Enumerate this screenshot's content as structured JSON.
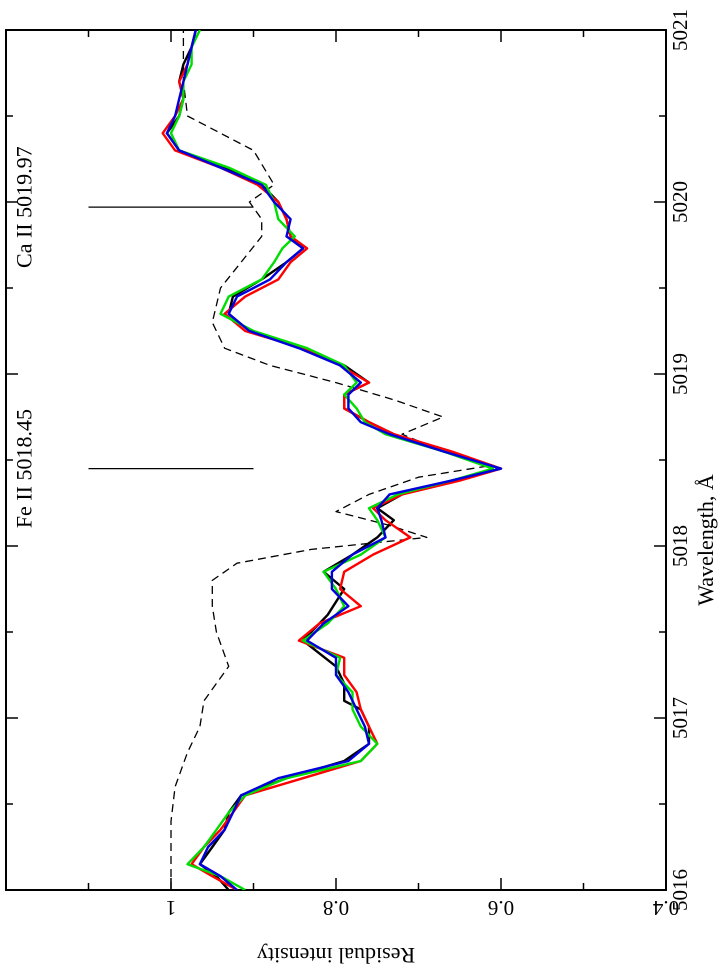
{
  "chart_data": {
    "type": "line",
    "orientation": "rotated-90-clockwise",
    "xlabel": "Wavelength, Å",
    "ylabel": "Residual intensity",
    "xlim": [
      5016,
      5021
    ],
    "ylim": [
      0.4,
      1.2
    ],
    "xticks": [
      5016,
      5017,
      5018,
      5019,
      5020,
      5021
    ],
    "xtick_labels": [
      "5016",
      "5017",
      "5018",
      "5019",
      "5020",
      "5021"
    ],
    "yticks": [
      0.4,
      0.6,
      0.8,
      1
    ],
    "ytick_labels": [
      "0.4",
      "0.6",
      "0.8",
      "1"
    ],
    "grid": false,
    "annotations": [
      {
        "label": "Fe II 5018.45",
        "x": 5018.45,
        "y_from": 0.9,
        "y_to": 1.1
      },
      {
        "label": "Ca II 5019.97",
        "x": 5019.97,
        "y_from": 0.9,
        "y_to": 1.1
      }
    ],
    "series": [
      {
        "color": "#000000",
        "dash": "dashed",
        "x": [
          5016.0,
          5016.4,
          5016.6,
          5016.8,
          5016.95,
          5017.1,
          5017.3,
          5017.5,
          5017.65,
          5017.8,
          5017.9,
          5017.98,
          5018.05,
          5018.12,
          5018.2,
          5018.3,
          5018.4,
          5018.47,
          5018.55,
          5018.65,
          5018.75,
          5018.85,
          5018.95,
          5019.05,
          5019.15,
          5019.3,
          5019.5,
          5019.65,
          5019.8,
          5019.9,
          5020.0,
          5020.1,
          5020.3,
          5020.5,
          5020.7,
          5021.0
        ],
        "y": [
          1.0,
          1.0,
          0.995,
          0.98,
          0.965,
          0.96,
          0.93,
          0.945,
          0.95,
          0.95,
          0.92,
          0.83,
          0.69,
          0.735,
          0.8,
          0.76,
          0.7,
          0.61,
          0.67,
          0.72,
          0.67,
          0.73,
          0.8,
          0.88,
          0.935,
          0.95,
          0.94,
          0.915,
          0.89,
          0.89,
          0.905,
          0.875,
          0.9,
          0.98,
          0.985,
          0.985
        ]
      },
      {
        "color": "#000000",
        "dash": "solid",
        "x": [
          5016.0,
          5016.08,
          5016.15,
          5016.25,
          5016.35,
          5016.45,
          5016.55,
          5016.65,
          5016.75,
          5016.85,
          5016.95,
          5017.05,
          5017.1,
          5017.2,
          5017.3,
          5017.45,
          5017.6,
          5017.75,
          5017.85,
          5017.95,
          5018.05,
          5018.15,
          5018.22,
          5018.3,
          5018.38,
          5018.45,
          5018.55,
          5018.65,
          5018.72,
          5018.8,
          5018.88,
          5018.95,
          5019.05,
          5019.15,
          5019.25,
          5019.35,
          5019.45,
          5019.55,
          5019.65,
          5019.73,
          5019.8,
          5019.9,
          5020.0,
          5020.1,
          5020.2,
          5020.3,
          5020.4,
          5020.5,
          5020.6,
          5020.7,
          5020.8,
          5020.9,
          5021.0
        ],
        "y": [
          0.93,
          0.945,
          0.965,
          0.95,
          0.935,
          0.93,
          0.915,
          0.86,
          0.79,
          0.76,
          0.76,
          0.77,
          0.79,
          0.79,
          0.8,
          0.84,
          0.81,
          0.79,
          0.815,
          0.78,
          0.75,
          0.73,
          0.75,
          0.72,
          0.66,
          0.6,
          0.67,
          0.73,
          0.76,
          0.79,
          0.79,
          0.76,
          0.79,
          0.84,
          0.905,
          0.93,
          0.925,
          0.89,
          0.86,
          0.84,
          0.855,
          0.86,
          0.87,
          0.89,
          0.935,
          0.99,
          1.005,
          0.99,
          0.985,
          0.99,
          0.985,
          0.975,
          0.97
        ]
      },
      {
        "color": "#ff0000",
        "dash": "solid",
        "x": [
          5016.0,
          5016.08,
          5016.15,
          5016.25,
          5016.35,
          5016.45,
          5016.55,
          5016.65,
          5016.75,
          5016.85,
          5016.95,
          5017.05,
          5017.15,
          5017.25,
          5017.35,
          5017.45,
          5017.55,
          5017.65,
          5017.75,
          5017.85,
          5017.95,
          5018.05,
          5018.15,
          5018.22,
          5018.3,
          5018.38,
          5018.45,
          5018.55,
          5018.65,
          5018.72,
          5018.8,
          5018.88,
          5018.95,
          5019.05,
          5019.15,
          5019.25,
          5019.35,
          5019.45,
          5019.55,
          5019.65,
          5019.73,
          5019.8,
          5019.9,
          5020.0,
          5020.1,
          5020.2,
          5020.3,
          5020.4,
          5020.5,
          5020.6,
          5020.7,
          5020.8,
          5020.9,
          5021.0
        ],
        "y": [
          0.92,
          0.95,
          0.975,
          0.96,
          0.94,
          0.925,
          0.91,
          0.84,
          0.77,
          0.75,
          0.76,
          0.77,
          0.775,
          0.79,
          0.79,
          0.845,
          0.82,
          0.77,
          0.795,
          0.79,
          0.755,
          0.71,
          0.74,
          0.755,
          0.72,
          0.65,
          0.6,
          0.66,
          0.73,
          0.76,
          0.79,
          0.79,
          0.76,
          0.795,
          0.84,
          0.91,
          0.935,
          0.91,
          0.87,
          0.855,
          0.835,
          0.855,
          0.86,
          0.87,
          0.895,
          0.94,
          0.995,
          1.01,
          0.995,
          0.985,
          0.99,
          0.98,
          0.975,
          0.97
        ]
      },
      {
        "color": "#00dd00",
        "dash": "solid",
        "x": [
          5016.0,
          5016.08,
          5016.15,
          5016.25,
          5016.35,
          5016.45,
          5016.55,
          5016.65,
          5016.75,
          5016.85,
          5016.95,
          5017.05,
          5017.15,
          5017.25,
          5017.35,
          5017.45,
          5017.55,
          5017.65,
          5017.75,
          5017.85,
          5017.95,
          5018.05,
          5018.15,
          5018.22,
          5018.3,
          5018.38,
          5018.45,
          5018.55,
          5018.65,
          5018.72,
          5018.8,
          5018.88,
          5018.95,
          5019.05,
          5019.15,
          5019.25,
          5019.35,
          5019.45,
          5019.55,
          5019.65,
          5019.73,
          5019.8,
          5019.9,
          5020.0,
          5020.1,
          5020.2,
          5020.3,
          5020.4,
          5020.5,
          5020.6,
          5020.7,
          5020.8,
          5020.9,
          5021.0
        ],
        "y": [
          0.91,
          0.94,
          0.98,
          0.96,
          0.945,
          0.93,
          0.91,
          0.86,
          0.77,
          0.75,
          0.77,
          0.78,
          0.78,
          0.8,
          0.795,
          0.84,
          0.81,
          0.79,
          0.8,
          0.815,
          0.77,
          0.74,
          0.75,
          0.76,
          0.725,
          0.66,
          0.61,
          0.67,
          0.74,
          0.765,
          0.775,
          0.79,
          0.775,
          0.79,
          0.835,
          0.9,
          0.94,
          0.93,
          0.89,
          0.875,
          0.865,
          0.85,
          0.87,
          0.875,
          0.885,
          0.93,
          0.99,
          1.0,
          0.99,
          0.985,
          0.985,
          0.975,
          0.975,
          0.965
        ]
      },
      {
        "color": "#0000dd",
        "dash": "solid",
        "x": [
          5016.0,
          5016.08,
          5016.15,
          5016.25,
          5016.35,
          5016.45,
          5016.55,
          5016.65,
          5016.75,
          5016.85,
          5016.95,
          5017.05,
          5017.15,
          5017.25,
          5017.35,
          5017.45,
          5017.55,
          5017.65,
          5017.75,
          5017.85,
          5017.95,
          5018.05,
          5018.15,
          5018.22,
          5018.3,
          5018.38,
          5018.45,
          5018.55,
          5018.65,
          5018.72,
          5018.8,
          5018.88,
          5018.95,
          5019.05,
          5019.15,
          5019.25,
          5019.35,
          5019.45,
          5019.55,
          5019.65,
          5019.73,
          5019.8,
          5019.9,
          5020.0,
          5020.1,
          5020.2,
          5020.3,
          5020.4,
          5020.5,
          5020.6,
          5020.7,
          5020.8,
          5020.9,
          5021.0
        ],
        "y": [
          0.92,
          0.94,
          0.965,
          0.955,
          0.935,
          0.925,
          0.915,
          0.87,
          0.785,
          0.76,
          0.765,
          0.775,
          0.785,
          0.8,
          0.8,
          0.835,
          0.815,
          0.785,
          0.805,
          0.805,
          0.78,
          0.74,
          0.745,
          0.75,
          0.735,
          0.66,
          0.6,
          0.67,
          0.735,
          0.77,
          0.785,
          0.785,
          0.77,
          0.795,
          0.845,
          0.905,
          0.93,
          0.92,
          0.88,
          0.86,
          0.84,
          0.86,
          0.855,
          0.875,
          0.89,
          0.94,
          0.99,
          1.005,
          0.995,
          0.99,
          0.985,
          0.98,
          0.975,
          0.97
        ]
      }
    ]
  }
}
